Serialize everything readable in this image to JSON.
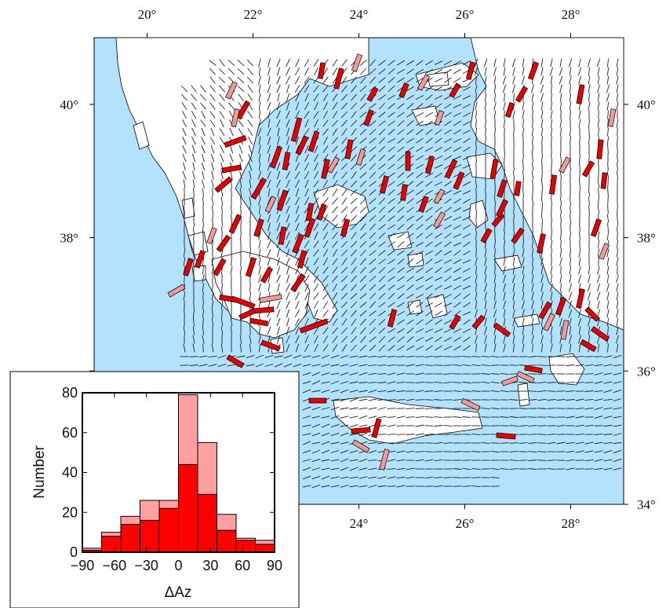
{
  "map": {
    "lon_labels": [
      "20°",
      "22°",
      "24°",
      "26°",
      "28°"
    ],
    "lon_values": [
      20,
      22,
      24,
      26,
      28
    ],
    "lat_labels": [
      "34°",
      "36°",
      "38°",
      "40°"
    ],
    "lat_values": [
      34,
      36,
      38,
      40
    ],
    "lon_range": [
      19,
      29
    ],
    "lat_range": [
      34,
      41
    ],
    "colors": {
      "sea": "#b3e2ff",
      "land": "#ffffff",
      "coast": "#000000",
      "vector_strong": "#e60000",
      "vector_weak": "#f29999",
      "field_lines": "#222222"
    }
  },
  "chart_data": {
    "type": "bar",
    "xlabel": "ΔAz",
    "ylabel": "Number",
    "xlim": [
      -90,
      90
    ],
    "ylim": [
      0,
      80
    ],
    "x_ticks": [
      -90,
      -60,
      -30,
      0,
      30,
      60,
      90
    ],
    "x_tick_labels": [
      "−90",
      "−60",
      "−30",
      "0",
      "30",
      "60",
      "90"
    ],
    "y_ticks": [
      0,
      20,
      40,
      60,
      80
    ],
    "y_tick_labels": [
      "0",
      "20",
      "40",
      "60",
      "80"
    ],
    "bin_edges": [
      -90,
      -72,
      -54,
      -36,
      -18,
      0,
      18,
      36,
      54,
      72,
      90
    ],
    "series": [
      {
        "values": [
          1,
          8,
          14,
          16,
          22,
          44,
          29,
          11,
          6,
          4
        ],
        "color": "#ff0000"
      },
      {
        "values": [
          2,
          10,
          18,
          26,
          26,
          79,
          55,
          19,
          7,
          6
        ],
        "color": "#ffa0a0"
      }
    ],
    "grid": false,
    "legend": "none"
  }
}
